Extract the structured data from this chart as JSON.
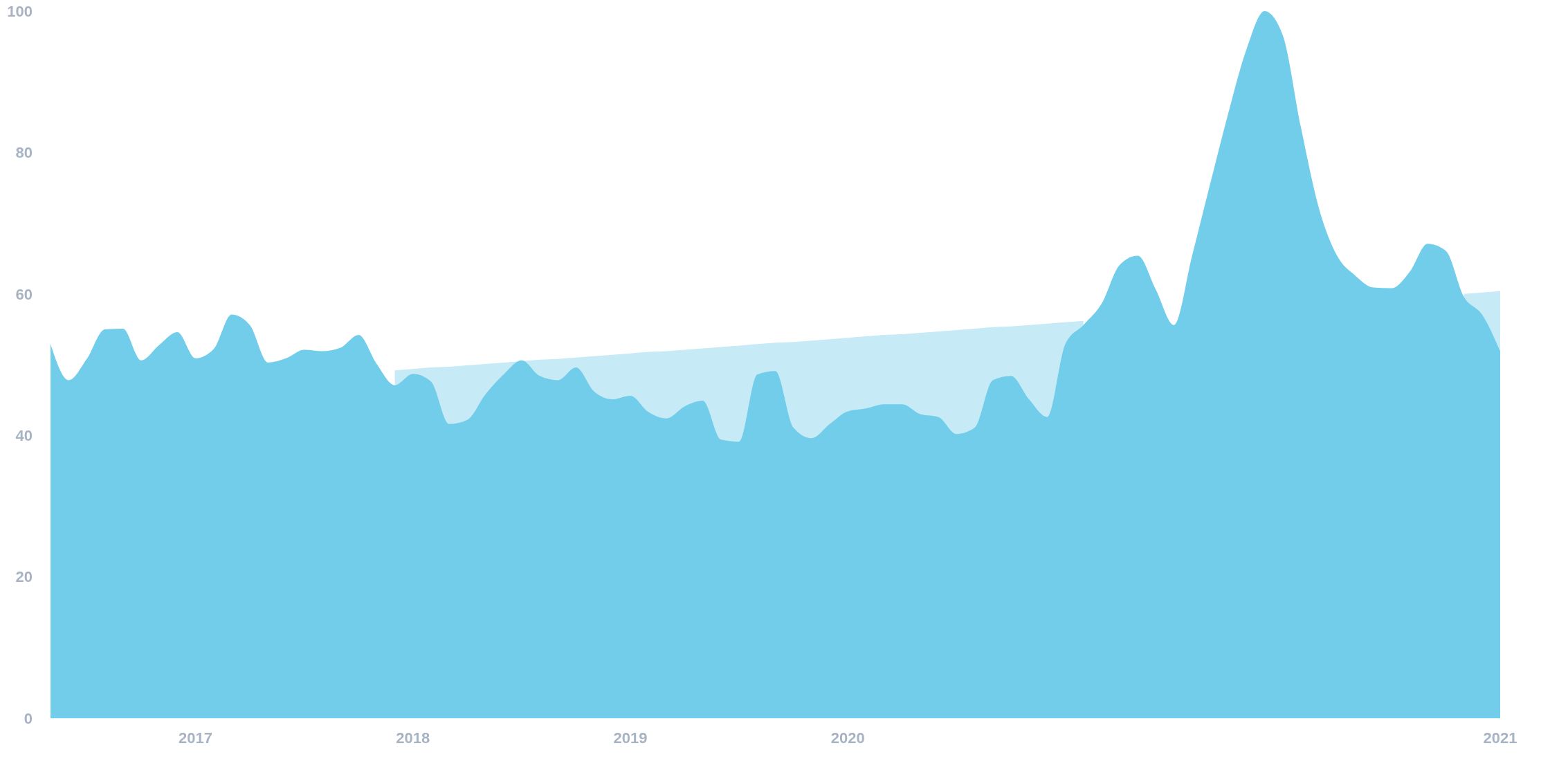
{
  "chart_data": {
    "type": "area",
    "categories": [
      null,
      null,
      null,
      null,
      null,
      null,
      null,
      null,
      "2017",
      null,
      null,
      null,
      null,
      null,
      null,
      null,
      null,
      null,
      null,
      null,
      "2018",
      null,
      null,
      null,
      null,
      null,
      null,
      null,
      null,
      null,
      null,
      null,
      "2019",
      null,
      null,
      null,
      null,
      null,
      null,
      null,
      null,
      null,
      null,
      null,
      "2020",
      null,
      null,
      null,
      null,
      null,
      null,
      null,
      null,
      null,
      null,
      null,
      null,
      null,
      null,
      null,
      null,
      null,
      null,
      null,
      null,
      null,
      null,
      null,
      null,
      null,
      null,
      null,
      null,
      null,
      null,
      null,
      null,
      null,
      null,
      null,
      "2021"
    ],
    "series": [
      {
        "color": "#c6eaf6",
        "values": [
          null,
          null,
          null,
          null,
          null,
          null,
          null,
          null,
          null,
          null,
          null,
          null,
          null,
          null,
          null,
          null,
          null,
          null,
          null,
          49.2,
          49.4,
          49.6,
          49.7,
          49.9,
          50.1,
          50.3,
          50.5,
          50.7,
          50.8,
          51.0,
          51.2,
          51.4,
          51.6,
          51.8,
          51.9,
          52.1,
          52.3,
          52.5,
          52.7,
          52.9,
          53.1,
          53.2,
          53.4,
          53.6,
          53.8,
          54.0,
          54.2,
          54.3,
          54.5,
          54.7,
          54.9,
          55.1,
          55.3,
          55.4,
          55.6,
          55.8,
          56.0,
          56.2,
          null,
          null,
          null,
          null,
          null,
          null,
          null,
          null,
          null,
          null,
          null,
          null,
          null,
          null,
          null,
          null,
          null,
          null,
          null,
          null,
          60.0,
          60.2,
          60.4
        ]
      },
      {
        "color": "#72cdea",
        "values": [
          52.9,
          47.8,
          50.8,
          55.0,
          55.1,
          50.6,
          52.8,
          54.6,
          50.9,
          52.2,
          57.1,
          55.6,
          50.3,
          50.9,
          52.1,
          51.9,
          52.4,
          54.2,
          50.1,
          47.1,
          48.7,
          47.6,
          41.6,
          42.2,
          45.8,
          48.6,
          50.6,
          48.4,
          47.8,
          49.6,
          46.2,
          45.1,
          45.6,
          43.3,
          42.4,
          44.1,
          44.9,
          39.4,
          39.1,
          48.6,
          49.1,
          41.1,
          39.6,
          41.6,
          43.4,
          43.8,
          44.4,
          44.4,
          43.0,
          42.6,
          40.2,
          41.1,
          47.8,
          48.4,
          45.1,
          42.6,
          52.9,
          55.6,
          58.6,
          64.1,
          65.4,
          60.6,
          55.6,
          65.4,
          75.6,
          85.6,
          94.6,
          100,
          96.6,
          83.6,
          72.1,
          65.4,
          62.6,
          60.9,
          60.8,
          63.1,
          67.1,
          66.1,
          59.6,
          57.1,
          51.9
        ]
      }
    ],
    "ylim": [
      0,
      100
    ],
    "yticks": [
      0,
      20,
      40,
      60,
      80,
      100
    ],
    "grid": false,
    "legend": false
  }
}
